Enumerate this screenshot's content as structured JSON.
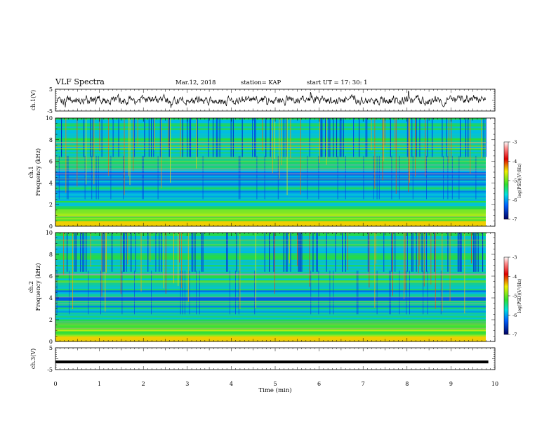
{
  "header": {
    "title": "VLF Spectra",
    "date": "Mar.12, 2018",
    "station": "station= KAP",
    "start": "start  UT =   17: 30: 1"
  },
  "colors": {
    "spectrogram_low": "#0000c8",
    "spectrogram_mid": "#40e060",
    "spectrogram_high": "#e02020",
    "trace": "#000000"
  },
  "chart_data": [
    {
      "type": "line",
      "panel": "ch1",
      "ylabel": "ch.1(V)",
      "ylim": [
        -5,
        5
      ],
      "yticks": [
        "5",
        "-5"
      ],
      "xlim": [
        0,
        10
      ],
      "description_values": "noisy waveform fluctuating roughly between -2 and 2 V"
    },
    {
      "type": "heatmap",
      "panel": "ch1_spectrogram",
      "ylabel_line1": "ch.1",
      "ylabel_line2": "Frequency (kHz)",
      "ylim": [
        0,
        10
      ],
      "yticks": [
        "0",
        "2",
        "4",
        "6",
        "8",
        "10"
      ],
      "xlim": [
        0,
        9.85
      ],
      "colorbar": {
        "label": "log(PSD)(V²/Hz)",
        "range": [
          -7,
          -3
        ],
        "ticks": [
          "-3",
          "-4",
          "-5",
          "-6",
          "-7"
        ]
      }
    },
    {
      "type": "heatmap",
      "panel": "ch2_spectrogram",
      "ylabel_line1": "ch.2",
      "ylabel_line2": "Frequency (kHz)",
      "ylim": [
        0,
        10
      ],
      "yticks": [
        "0",
        "2",
        "4",
        "6",
        "8",
        "10"
      ],
      "xlim": [
        0,
        9.85
      ],
      "colorbar": {
        "label": "log(PSD)(V²/Hz)",
        "range": [
          -7,
          -3
        ],
        "ticks": [
          "-3",
          "-4",
          "-5",
          "-6",
          "-7"
        ]
      }
    },
    {
      "type": "line",
      "panel": "ch3",
      "ylabel": "ch.3(V)",
      "ylim": [
        -5,
        5
      ],
      "yticks": [
        "5",
        "-5"
      ],
      "x": [
        0,
        9.85
      ],
      "y": [
        -1.5,
        -1.5
      ]
    }
  ],
  "xaxis": {
    "label": "Time (min)",
    "ticks": [
      "0",
      "1",
      "2",
      "3",
      "4",
      "5",
      "6",
      "7",
      "8",
      "9",
      "10"
    ]
  }
}
